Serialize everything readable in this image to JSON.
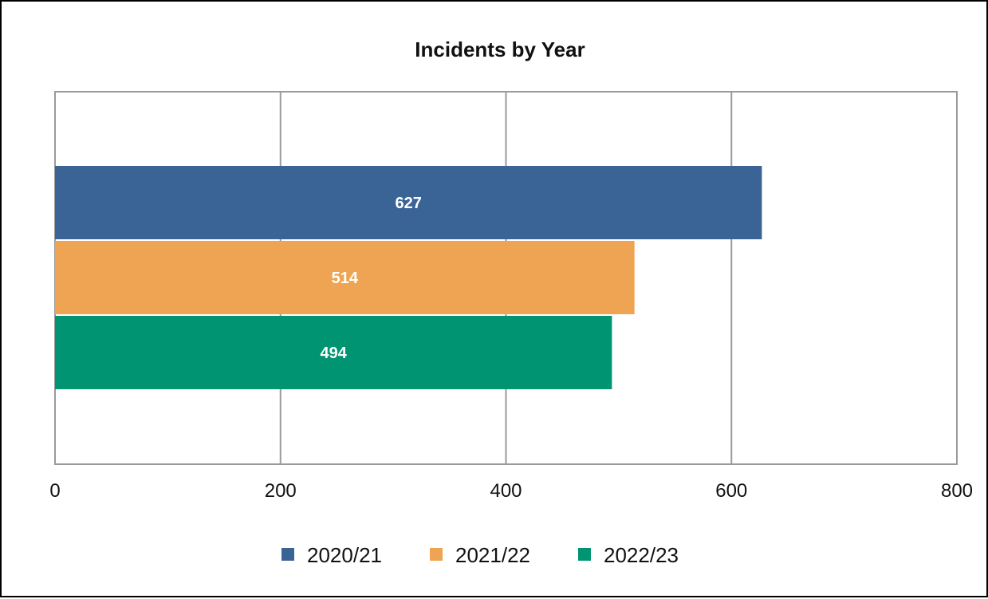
{
  "chart_data": {
    "type": "bar",
    "orientation": "horizontal",
    "title": "Incidents by Year",
    "xlabel": "",
    "ylabel": "",
    "xlim": [
      0,
      800
    ],
    "x_ticks": [
      "0",
      "200",
      "400",
      "600",
      "800"
    ],
    "grid": true,
    "legend_position": "bottom",
    "series": [
      {
        "name": "2020/21",
        "value": 627,
        "label": "627",
        "color": "#3b6496"
      },
      {
        "name": "2021/22",
        "value": 514,
        "label": "514",
        "color": "#eea453"
      },
      {
        "name": "2022/23",
        "value": 494,
        "label": "494",
        "color": "#009473"
      }
    ]
  }
}
